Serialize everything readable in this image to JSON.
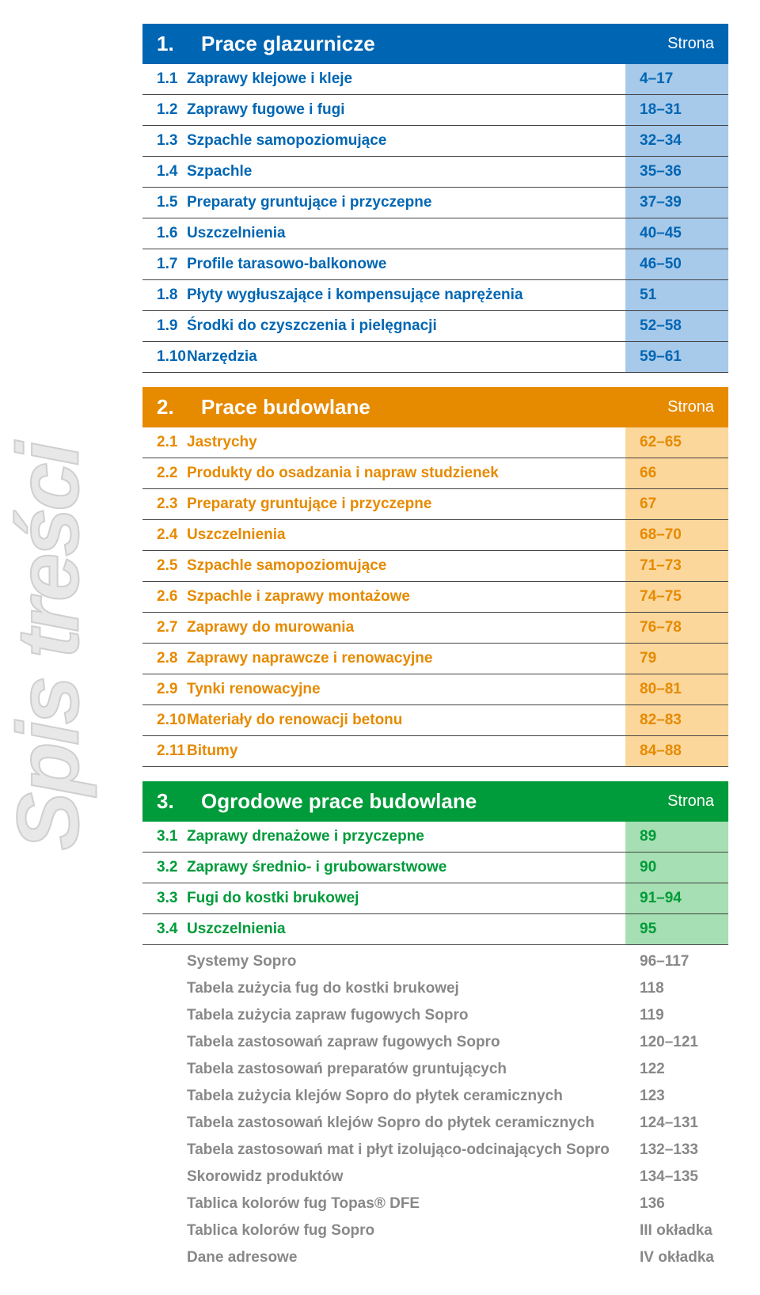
{
  "vertical_title": "Spis treści",
  "sections": [
    {
      "num": "1.",
      "title": "Prace glazurnicze",
      "page_label": "Strona",
      "head_bg": "#0066b3",
      "text_color": "#0066b3",
      "item_bg": "#a7c9ea",
      "border_color": "#444444",
      "items": [
        {
          "num": "1.1",
          "title": "Zaprawy klejowe i kleje",
          "pages": "4–17"
        },
        {
          "num": "1.2",
          "title": "Zaprawy fugowe i fugi",
          "pages": "18–31"
        },
        {
          "num": "1.3",
          "title": "Szpachle samopoziomujące",
          "pages": "32–34"
        },
        {
          "num": "1.4",
          "title": "Szpachle",
          "pages": "35–36"
        },
        {
          "num": "1.5",
          "title": "Preparaty gruntujące i przyczepne",
          "pages": "37–39"
        },
        {
          "num": "1.6",
          "title": "Uszczelnienia",
          "pages": "40–45"
        },
        {
          "num": "1.7",
          "title": "Profile tarasowo-balkonowe",
          "pages": "46–50"
        },
        {
          "num": "1.8",
          "title": "Płyty wygłuszające i kompensujące naprężenia",
          "pages": "51"
        },
        {
          "num": "1.9",
          "title": "Środki do czyszczenia i pielęgnacji",
          "pages": "52–58"
        },
        {
          "num": "1.10",
          "title": "Narzędzia",
          "pages": "59–61"
        }
      ]
    },
    {
      "num": "2.",
      "title": "Prace budowlane",
      "page_label": "Strona",
      "head_bg": "#e68a00",
      "text_color": "#e68a00",
      "item_bg": "#fbd79c",
      "border_color": "#444444",
      "items": [
        {
          "num": "2.1",
          "title": "Jastrychy",
          "pages": "62–65"
        },
        {
          "num": "2.2",
          "title": "Produkty do osadzania i napraw studzienek",
          "pages": "66"
        },
        {
          "num": "2.3",
          "title": "Preparaty gruntujące i przyczepne",
          "pages": "67"
        },
        {
          "num": "2.4",
          "title": "Uszczelnienia",
          "pages": "68–70"
        },
        {
          "num": "2.5",
          "title": "Szpachle samopoziomujące",
          "pages": "71–73"
        },
        {
          "num": "2.6",
          "title": "Szpachle i zaprawy montażowe",
          "pages": "74–75"
        },
        {
          "num": "2.7",
          "title": "Zaprawy do murowania",
          "pages": "76–78"
        },
        {
          "num": "2.8",
          "title": "Zaprawy naprawcze i renowacyjne",
          "pages": "79"
        },
        {
          "num": "2.9",
          "title": "Tynki renowacyjne",
          "pages": "80–81"
        },
        {
          "num": "2.10",
          "title": "Materiały do renowacji betonu",
          "pages": "82–83"
        },
        {
          "num": "2.11",
          "title": "Bitumy",
          "pages": "84–88"
        }
      ]
    },
    {
      "num": "3.",
      "title": "Ogrodowe prace budowlane",
      "page_label": "Strona",
      "head_bg": "#009b3a",
      "text_color": "#009b3a",
      "item_bg": "#a6dfb3",
      "border_color": "#444444",
      "items": [
        {
          "num": "3.1",
          "title": "Zaprawy drenażowe i przyczepne",
          "pages": "89"
        },
        {
          "num": "3.2",
          "title": "Zaprawy średnio- i grubowarstwowe",
          "pages": "90"
        },
        {
          "num": "3.3",
          "title": "Fugi do kostki brukowej",
          "pages": "91–94"
        },
        {
          "num": "3.4",
          "title": "Uszczelnienia",
          "pages": "95"
        }
      ]
    }
  ],
  "appendix": [
    {
      "title": "Systemy Sopro",
      "pages": "96–117"
    },
    {
      "title": "Tabela zużycia fug do kostki brukowej",
      "pages": "118"
    },
    {
      "title": "Tabela zużycia zapraw fugowych Sopro",
      "pages": "119"
    },
    {
      "title": "Tabela zastosowań zapraw fugowych Sopro",
      "pages": "120–121"
    },
    {
      "title": "Tabela zastosowań preparatów gruntujących",
      "pages": "122"
    },
    {
      "title": "Tabela zużycia klejów Sopro do płytek ceramicznych",
      "pages": "123"
    },
    {
      "title": "Tabela zastosowań klejów Sopro do płytek ceramicznych",
      "pages": "124–131"
    },
    {
      "title": "Tabela zastosowań mat i płyt izolująco-odcinających Sopro",
      "pages": "132–133"
    },
    {
      "title": "Skorowidz produktów",
      "pages": "134–135"
    },
    {
      "title": "Tablica kolorów fug Topas® DFE",
      "pages": "136"
    },
    {
      "title": "Tablica kolorów fug Sopro",
      "pages": "III okładka"
    },
    {
      "title": "Dane adresowe",
      "pages": "IV okładka"
    }
  ]
}
